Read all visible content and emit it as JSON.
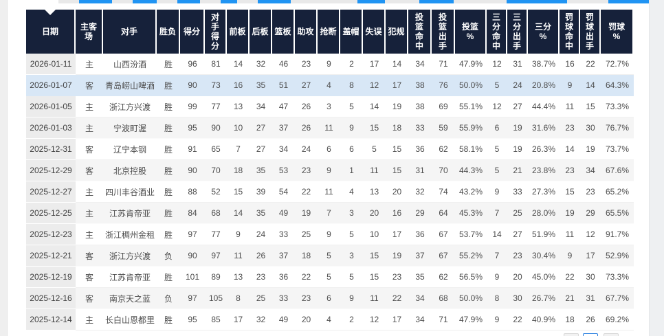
{
  "colors": {
    "header_bg": "#16213A",
    "header_text": "#FFFFFF",
    "highlight_row": "#D8E7F6",
    "stripe_row": "#F5F5F5",
    "date_column_bg": "#ECECEC",
    "accent_blue": "#2094F3",
    "body_text": "#4D4D4D"
  },
  "top_tabs": {
    "description": "row of tabs cut off at top edge",
    "segment_count": 9
  },
  "table": {
    "highlighted_row_index": 1,
    "columns": [
      {
        "id": "date",
        "label": "日期"
      },
      {
        "id": "venue",
        "label": "主客\n场"
      },
      {
        "id": "opponent",
        "label": "对手"
      },
      {
        "id": "result",
        "label": "胜负"
      },
      {
        "id": "points",
        "label": "得分"
      },
      {
        "id": "opp_points",
        "label": "对\n手\n得\n分"
      },
      {
        "id": "orb",
        "label": "前板"
      },
      {
        "id": "drb",
        "label": "后板"
      },
      {
        "id": "reb",
        "label": "篮板"
      },
      {
        "id": "ast",
        "label": "助攻"
      },
      {
        "id": "stl",
        "label": "抢断"
      },
      {
        "id": "blk",
        "label": "盖帽"
      },
      {
        "id": "tov",
        "label": "失误"
      },
      {
        "id": "pf",
        "label": "犯规"
      },
      {
        "id": "fgm",
        "label": "投\n篮\n命\n中"
      },
      {
        "id": "fga",
        "label": "投\n篮\n出\n手"
      },
      {
        "id": "fg_pct",
        "label": "投篮\n%"
      },
      {
        "id": "tpm",
        "label": "三\n分\n命\n中"
      },
      {
        "id": "tpa",
        "label": "三\n分\n出\n手"
      },
      {
        "id": "tp_pct",
        "label": "三分\n%"
      },
      {
        "id": "ftm",
        "label": "罚\n球\n命\n中"
      },
      {
        "id": "fta",
        "label": "罚\n球\n出\n手"
      },
      {
        "id": "ft_pct",
        "label": "罚球\n%"
      }
    ],
    "rows": [
      [
        "2026-01-11",
        "主",
        "山西汾酒",
        "胜",
        "96",
        "81",
        "14",
        "32",
        "46",
        "23",
        "9",
        "2",
        "17",
        "14",
        "34",
        "71",
        "47.9%",
        "12",
        "31",
        "38.7%",
        "16",
        "22",
        "72.7%"
      ],
      [
        "2026-01-07",
        "客",
        "青岛崂山啤酒",
        "胜",
        "90",
        "73",
        "16",
        "35",
        "51",
        "27",
        "4",
        "8",
        "12",
        "17",
        "38",
        "76",
        "50.0%",
        "5",
        "24",
        "20.8%",
        "9",
        "14",
        "64.3%"
      ],
      [
        "2026-01-05",
        "主",
        "浙江方兴渡",
        "胜",
        "99",
        "77",
        "13",
        "34",
        "47",
        "26",
        "3",
        "5",
        "14",
        "19",
        "38",
        "69",
        "55.1%",
        "12",
        "27",
        "44.4%",
        "11",
        "15",
        "73.3%"
      ],
      [
        "2026-01-03",
        "主",
        "宁波町渥",
        "胜",
        "95",
        "90",
        "10",
        "27",
        "37",
        "26",
        "11",
        "9",
        "15",
        "18",
        "33",
        "59",
        "55.9%",
        "6",
        "19",
        "31.6%",
        "23",
        "30",
        "76.7%"
      ],
      [
        "2025-12-31",
        "客",
        "辽宁本钢",
        "胜",
        "91",
        "65",
        "7",
        "27",
        "34",
        "24",
        "6",
        "6",
        "5",
        "15",
        "36",
        "62",
        "58.1%",
        "5",
        "19",
        "26.3%",
        "14",
        "19",
        "73.7%"
      ],
      [
        "2025-12-29",
        "客",
        "北京控股",
        "胜",
        "90",
        "70",
        "18",
        "35",
        "53",
        "23",
        "9",
        "1",
        "11",
        "15",
        "31",
        "70",
        "44.3%",
        "5",
        "21",
        "23.8%",
        "23",
        "34",
        "67.6%"
      ],
      [
        "2025-12-27",
        "主",
        "四川丰谷酒业",
        "胜",
        "88",
        "52",
        "15",
        "39",
        "54",
        "22",
        "11",
        "4",
        "13",
        "20",
        "32",
        "74",
        "43.2%",
        "9",
        "33",
        "27.3%",
        "15",
        "23",
        "65.2%"
      ],
      [
        "2025-12-25",
        "主",
        "江苏肯帝亚",
        "胜",
        "84",
        "68",
        "14",
        "35",
        "49",
        "19",
        "7",
        "3",
        "20",
        "16",
        "29",
        "64",
        "45.3%",
        "7",
        "25",
        "28.0%",
        "19",
        "29",
        "65.5%"
      ],
      [
        "2025-12-23",
        "主",
        "浙江稠州金租",
        "胜",
        "97",
        "77",
        "9",
        "24",
        "33",
        "25",
        "9",
        "5",
        "10",
        "17",
        "36",
        "67",
        "53.7%",
        "14",
        "27",
        "51.9%",
        "11",
        "12",
        "91.7%"
      ],
      [
        "2025-12-21",
        "客",
        "浙江方兴渡",
        "负",
        "90",
        "97",
        "11",
        "26",
        "37",
        "18",
        "5",
        "3",
        "15",
        "19",
        "37",
        "67",
        "55.2%",
        "7",
        "23",
        "30.4%",
        "9",
        "17",
        "52.9%"
      ],
      [
        "2025-12-19",
        "客",
        "江苏肯帝亚",
        "胜",
        "101",
        "89",
        "13",
        "23",
        "36",
        "22",
        "5",
        "5",
        "15",
        "23",
        "35",
        "62",
        "56.5%",
        "9",
        "20",
        "45.0%",
        "22",
        "30",
        "73.3%"
      ],
      [
        "2025-12-16",
        "客",
        "南京天之蓝",
        "负",
        "97",
        "105",
        "8",
        "25",
        "33",
        "23",
        "6",
        "9",
        "11",
        "22",
        "34",
        "68",
        "50.0%",
        "8",
        "30",
        "26.7%",
        "21",
        "31",
        "67.7%"
      ],
      [
        "2025-12-14",
        "主",
        "长白山恩都里",
        "胜",
        "95",
        "85",
        "17",
        "32",
        "49",
        "20",
        "4",
        "2",
        "12",
        "17",
        "34",
        "71",
        "47.9%",
        "9",
        "22",
        "40.9%",
        "18",
        "26",
        "69.2%"
      ]
    ]
  },
  "pagination": {
    "button_count": 3,
    "active_index": 1
  }
}
